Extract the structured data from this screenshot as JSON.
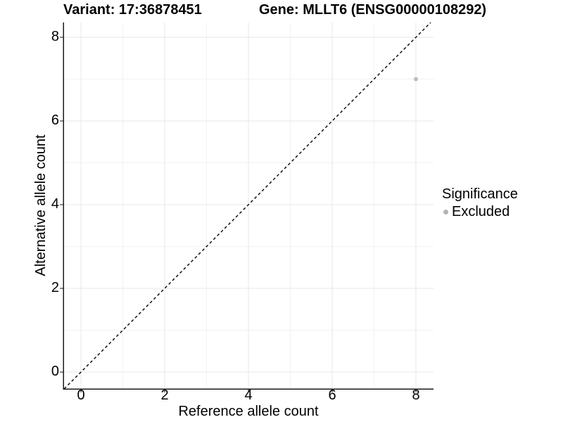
{
  "chart_data": {
    "type": "scatter",
    "title_left": "Variant: 17:36878451",
    "title_right": "Gene: MLLT6 (ENSG00000108292)",
    "xlabel": "Reference allele count",
    "ylabel": "Alternative allele count",
    "xlim": [
      -0.42,
      8.42
    ],
    "ylim": [
      -0.4,
      8.35
    ],
    "x_ticks": [
      0,
      2,
      4,
      6,
      8
    ],
    "y_ticks": [
      0,
      2,
      4,
      6,
      8
    ],
    "x_minor_ticks": [
      1,
      3,
      5,
      7
    ],
    "y_minor_ticks": [
      1,
      3,
      5,
      7
    ],
    "grid": "major+minor",
    "reference_line": {
      "type": "identity",
      "equation": "y = x",
      "style": "dashed",
      "color": "#000000"
    },
    "series": [
      {
        "name": "Excluded",
        "color": "#bdbdbd",
        "point_radius": 3,
        "points": [
          [
            8,
            7
          ]
        ]
      }
    ],
    "legend": {
      "title": "Significance",
      "position": "right",
      "entries": [
        {
          "label": "Excluded",
          "color": "#b3b3b3"
        }
      ]
    },
    "colors": {
      "background": "#ffffff",
      "grid_major": "#e7e7e7",
      "grid_minor": "#f2f2f2",
      "axis": "#1a1a1a",
      "text": "#000000"
    }
  }
}
